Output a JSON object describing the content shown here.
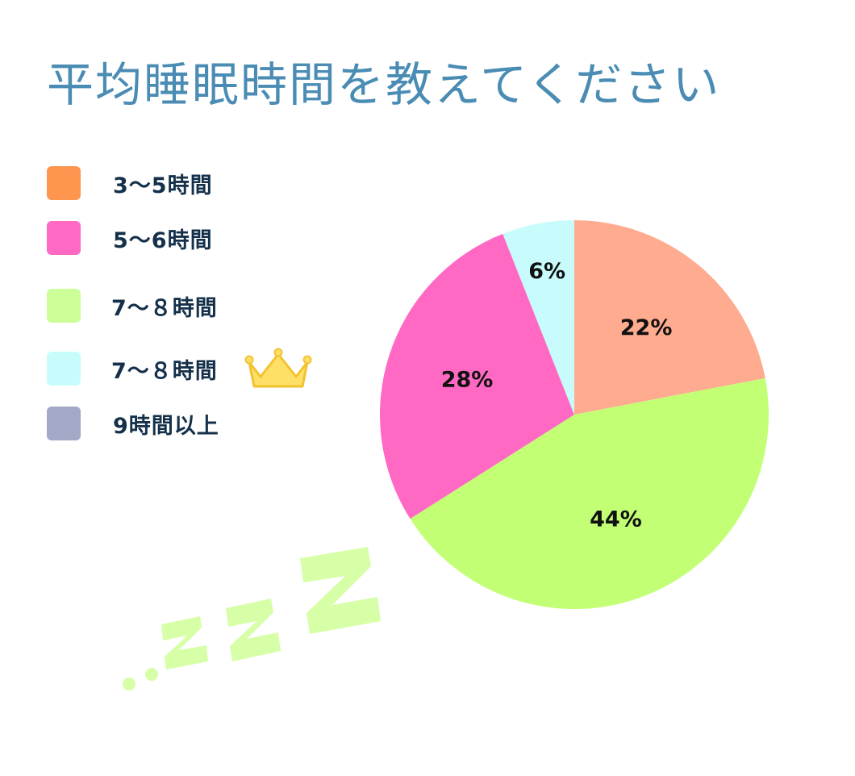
{
  "title": "平均睡眠時間を教えてください",
  "legend": [
    {
      "label": "3～5時間",
      "color": "#ff9650"
    },
    {
      "label": "5～6時間",
      "color": "#ff69c4"
    },
    {
      "label": "7～８時間",
      "color": "#ccff99"
    },
    {
      "label": "7～８時間",
      "color": "#c8fcfc"
    },
    {
      "label": "9時間以上",
      "color": "#a3a8c6"
    }
  ],
  "legend_crown_icon": "crown-icon",
  "decoration_icon": "sleeping-zzz-icon",
  "chart_data": {
    "type": "pie",
    "title": "平均睡眠時間を教えてください",
    "slices": [
      {
        "label": "22%",
        "value": 22,
        "color": "#ffab8f"
      },
      {
        "label": "44%",
        "value": 44,
        "color": "#c2ff75"
      },
      {
        "label": "28%",
        "value": 28,
        "color": "#ff69c4"
      },
      {
        "label": "6%",
        "value": 6,
        "color": "#c8fcfc"
      }
    ],
    "start": "top",
    "direction": "clockwise",
    "legend_position": "left"
  }
}
